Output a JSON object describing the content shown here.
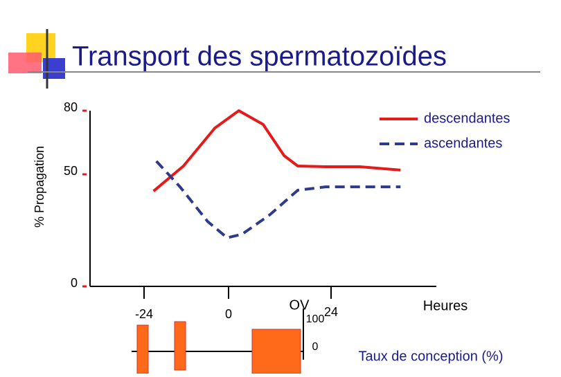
{
  "chart_data": {
    "type": "line",
    "title": "Transport des spermatozoïdes",
    "y_label": "% Propagation",
    "x_label": "Heures",
    "annotations": [
      "OV",
      "100",
      "0",
      "Taux de conception (%)"
    ],
    "xlim": [
      -39,
      49
    ],
    "xticks": [
      -24,
      0,
      24
    ],
    "ylim": [
      0,
      80
    ],
    "yticks": [
      0,
      50,
      80
    ],
    "legend": "top-right",
    "series": [
      {
        "name": "descendantes",
        "color": "#e41b1b",
        "dash": false,
        "x": [
          -21.3,
          -12.8,
          -3.9,
          2.4,
          8.1,
          13,
          16.2,
          22.7,
          30.8,
          40.5
        ],
        "values": [
          42.5,
          53.9,
          71.8,
          80,
          73.5,
          58.8,
          53.9,
          53.6,
          53.6,
          52
        ]
      },
      {
        "name": "ascendantes",
        "color": "#2e3a8c",
        "dash": true,
        "x": [
          -20.5,
          -13.8,
          -5.9,
          -0.4,
          3.2,
          9.7,
          16.2,
          22.7,
          40.5
        ],
        "values": [
          56.2,
          44.4,
          28.9,
          21.7,
          23.3,
          32,
          42.9,
          44.4,
          44.4
        ]
      }
    ]
  }
}
